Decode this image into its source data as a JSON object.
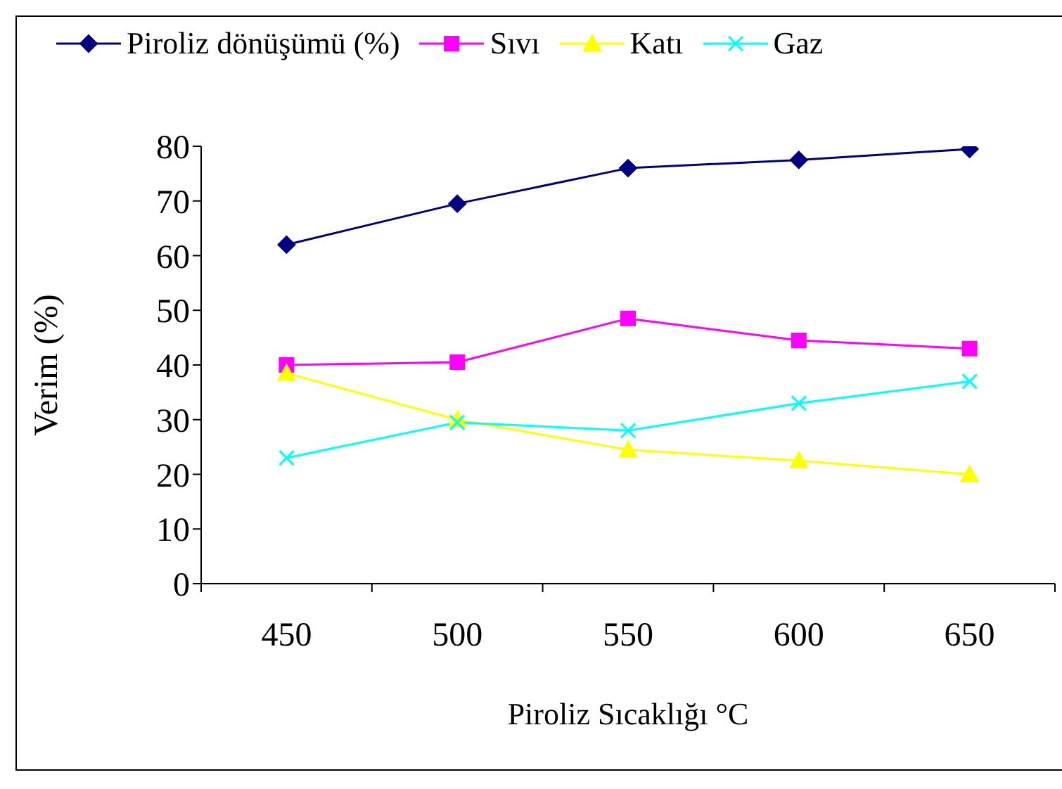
{
  "chart_data": {
    "type": "line",
    "xlabel": "Piroliz Sıcaklığı °C",
    "ylabel": "Verim (%)",
    "categories": [
      "450",
      "500",
      "550",
      "600",
      "650"
    ],
    "ylim": [
      0,
      80
    ],
    "yticks": [
      0,
      10,
      20,
      30,
      40,
      50,
      60,
      70,
      80
    ],
    "grid": false,
    "legend": "top",
    "series": [
      {
        "name": "Piroliz dönüşümü (%)",
        "color": "#000080",
        "marker": "diamond",
        "values": [
          62,
          69.5,
          76,
          77.5,
          79.5
        ]
      },
      {
        "name": "Sıvı",
        "color": "#ff00ff",
        "marker": "square",
        "values": [
          40,
          40.5,
          48.5,
          44.5,
          43
        ]
      },
      {
        "name": "Katı",
        "color": "#ffff00",
        "marker": "triangle",
        "values": [
          38.5,
          30,
          24.5,
          22.5,
          20
        ]
      },
      {
        "name": "Gaz",
        "color": "#00ffff",
        "marker": "cross",
        "values": [
          23,
          29.5,
          28,
          33,
          37
        ]
      }
    ]
  }
}
